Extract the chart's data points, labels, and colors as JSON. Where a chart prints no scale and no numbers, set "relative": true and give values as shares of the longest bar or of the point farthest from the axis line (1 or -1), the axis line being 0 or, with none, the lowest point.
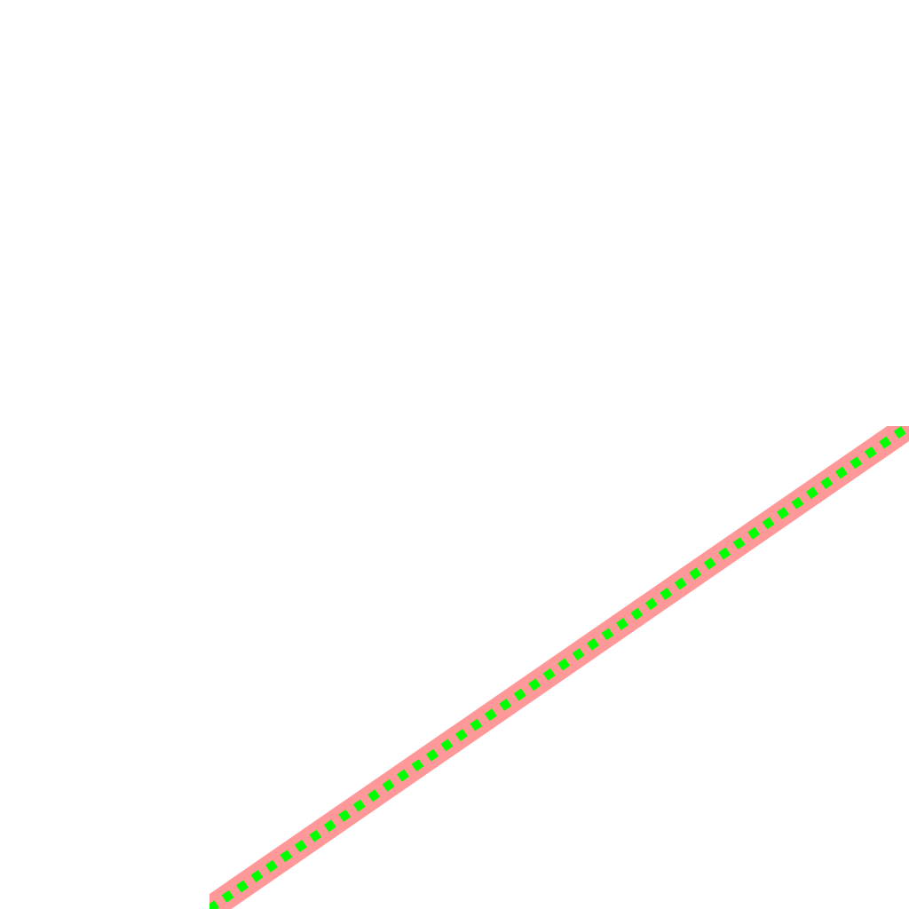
{
  "chart_data": {
    "type": "line",
    "relative": true,
    "categories": [
      null,
      null
    ],
    "line_style": "solid",
    "marker": "none",
    "series": [
      {
        "color": "#ff9999",
        "values": [
          0,
          1
        ]
      },
      {
        "color": "#00ff00",
        "values": [
          0,
          1
        ],
        "line_style": "dotted"
      }
    ]
  }
}
